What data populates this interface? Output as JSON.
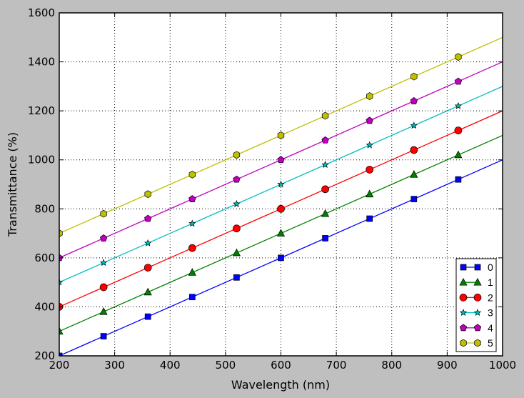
{
  "chart_data": {
    "type": "line",
    "title": "",
    "xlabel": "Wavelength (nm)",
    "ylabel": "Transmittance (%)",
    "xlim": [
      200,
      1000
    ],
    "ylim": [
      200,
      1600
    ],
    "xticks": [
      200,
      300,
      400,
      500,
      600,
      700,
      800,
      900,
      1000
    ],
    "yticks": [
      200,
      400,
      600,
      800,
      1000,
      1200,
      1400,
      1600
    ],
    "grid": true,
    "legend_position": "lower right",
    "x": [
      200,
      1000
    ],
    "marker_x": [
      200,
      280,
      360,
      440,
      520,
      600,
      680,
      760,
      840,
      920
    ],
    "series": [
      {
        "name": "0",
        "color": "#0000ff",
        "marker": "square",
        "values": [
          200,
          1000
        ],
        "marker_values": [
          200,
          280,
          360,
          440,
          520,
          600,
          680,
          760,
          840,
          920
        ]
      },
      {
        "name": "1",
        "color": "#008000",
        "marker": "triangle",
        "values": [
          300,
          1100
        ],
        "marker_values": [
          300,
          380,
          460,
          540,
          620,
          700,
          780,
          860,
          940,
          1020
        ]
      },
      {
        "name": "2",
        "color": "#ff0000",
        "marker": "circle",
        "values": [
          400,
          1200
        ],
        "marker_values": [
          400,
          480,
          560,
          640,
          720,
          800,
          880,
          960,
          1040,
          1120
        ]
      },
      {
        "name": "3",
        "color": "#00bfbf",
        "marker": "star",
        "values": [
          500,
          1300
        ],
        "marker_values": [
          500,
          580,
          660,
          740,
          820,
          900,
          980,
          1060,
          1140,
          1220
        ]
      },
      {
        "name": "4",
        "color": "#bf00bf",
        "marker": "pentagon",
        "values": [
          600,
          1400
        ],
        "marker_values": [
          600,
          680,
          760,
          840,
          920,
          1000,
          1080,
          1160,
          1240,
          1320
        ]
      },
      {
        "name": "5",
        "color": "#bfbf00",
        "marker": "hexagon",
        "values": [
          700,
          1500
        ],
        "marker_values": [
          700,
          780,
          860,
          940,
          1020,
          1100,
          1180,
          1260,
          1340,
          1420
        ]
      }
    ]
  }
}
